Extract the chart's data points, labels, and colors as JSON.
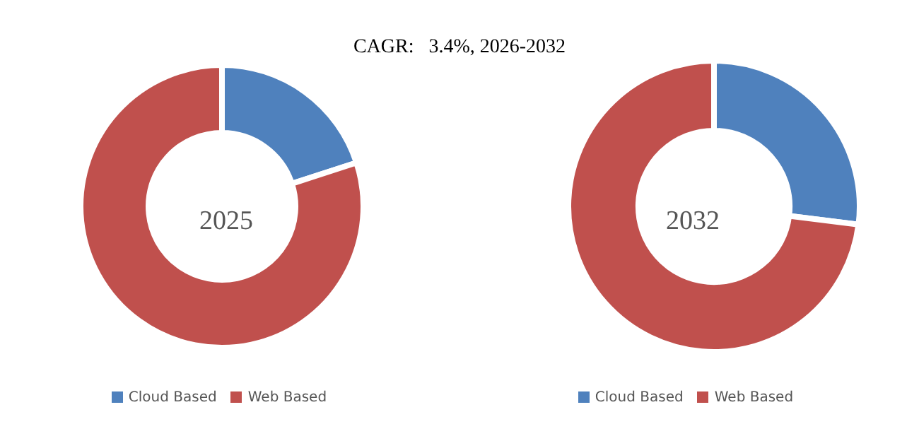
{
  "chart_data": [
    {
      "type": "donut",
      "title": "2025",
      "annotations": [
        "CAGR:   3.4%, 2026-2032"
      ],
      "categories": [
        "Cloud Based",
        "Web Based"
      ],
      "values": [
        20,
        80
      ],
      "colors": [
        "#4f81bd",
        "#c0504d"
      ],
      "legend": "bottom"
    },
    {
      "type": "donut",
      "title": "2032",
      "categories": [
        "Cloud Based",
        "Web Based"
      ],
      "values": [
        27,
        73
      ],
      "colors": [
        "#4f81bd",
        "#c0504d"
      ],
      "legend": "bottom"
    }
  ]
}
